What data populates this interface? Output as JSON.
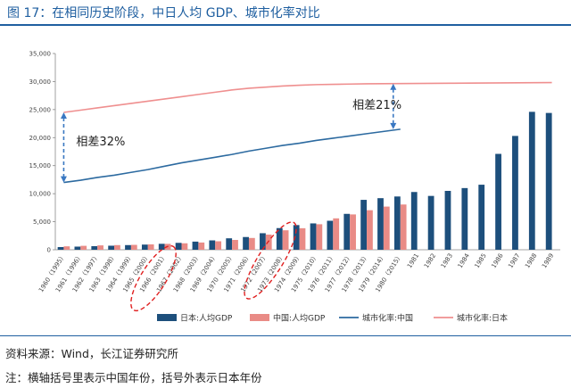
{
  "title": "图 17：在相同历史阶段，中日人均 GDP、城市化率对比",
  "source": "资料来源：Wind，长江证券研究所",
  "note": "注：横轴括号里表示中国年份，括号外表示日本年份",
  "colors": {
    "title": "#1f5fa0",
    "japan_gdp": "#1d4f7c",
    "china_gdp": "#e98b86",
    "china_urban": "#2c6aa0",
    "japan_urban": "#ef8f8f",
    "annotation_arrow": "#3a78c2",
    "dashed_circle": "#e02020"
  },
  "chart_data": {
    "type": "bar",
    "categories": [
      "1960（1995）",
      "1961（1996）",
      "1962（1997）",
      "1963（1998）",
      "1964（1999）",
      "1965（2000）",
      "1966（2001）",
      "1967（2002）",
      "1968（2003）",
      "1969（2004）",
      "1970（2005）",
      "1971（2006）",
      "1972（2007）",
      "1973（2008）",
      "1974（2009）",
      "1975（2010）",
      "1976（2011）",
      "1977（2012）",
      "1978（2013）",
      "1979（2014）",
      "1980（2015）",
      "1981",
      "1982",
      "1983",
      "1984",
      "1985",
      "1986",
      "1987",
      "1988",
      "1989"
    ],
    "series": [
      {
        "name": "日本:人均GDP",
        "kind": "bar",
        "values": [
          480,
          560,
          640,
          720,
          830,
          920,
          1060,
          1230,
          1450,
          1670,
          2040,
          2270,
          2950,
          3860,
          4400,
          4700,
          5170,
          6400,
          8900,
          9200,
          9500,
          10300,
          9600,
          10500,
          11000,
          11600,
          17100,
          20300,
          24600,
          24400
        ]
      },
      {
        "name": "中国:人均GDP",
        "kind": "bar",
        "values": [
          610,
          700,
          780,
          830,
          870,
          960,
          1050,
          1150,
          1290,
          1510,
          1750,
          2100,
          2700,
          3470,
          3840,
          4550,
          5600,
          6300,
          7050,
          7700,
          8070,
          null,
          null,
          null,
          null,
          null,
          null,
          null,
          null,
          null
        ]
      },
      {
        "name": "城市化率:中国",
        "kind": "line",
        "values": [
          12000,
          12400,
          12900,
          13300,
          13800,
          14300,
          14900,
          15500,
          16000,
          16500,
          17000,
          17600,
          18100,
          18600,
          19000,
          19500,
          19900,
          20300,
          20700,
          21100,
          21500,
          null,
          null,
          null,
          null,
          null,
          null,
          null,
          null,
          null
        ]
      },
      {
        "name": "城市化率:日本",
        "kind": "line",
        "values": [
          24500,
          24900,
          25300,
          25700,
          26100,
          26500,
          26900,
          27300,
          27700,
          28100,
          28500,
          28800,
          29000,
          29200,
          29350,
          29450,
          29500,
          29550,
          29600,
          29620,
          29640,
          29660,
          29680,
          29700,
          29720,
          29740,
          29760,
          29780,
          29800,
          29820
        ]
      }
    ],
    "ylim": [
      0,
      35000
    ],
    "yticks": [
      "0",
      "5,000",
      "10,000",
      "15,000",
      "20,000",
      "25,000",
      "30,000",
      "35,000"
    ],
    "annotations": [
      "相差32%",
      "相差21%"
    ],
    "legend_position": "bottom",
    "grid": false
  }
}
